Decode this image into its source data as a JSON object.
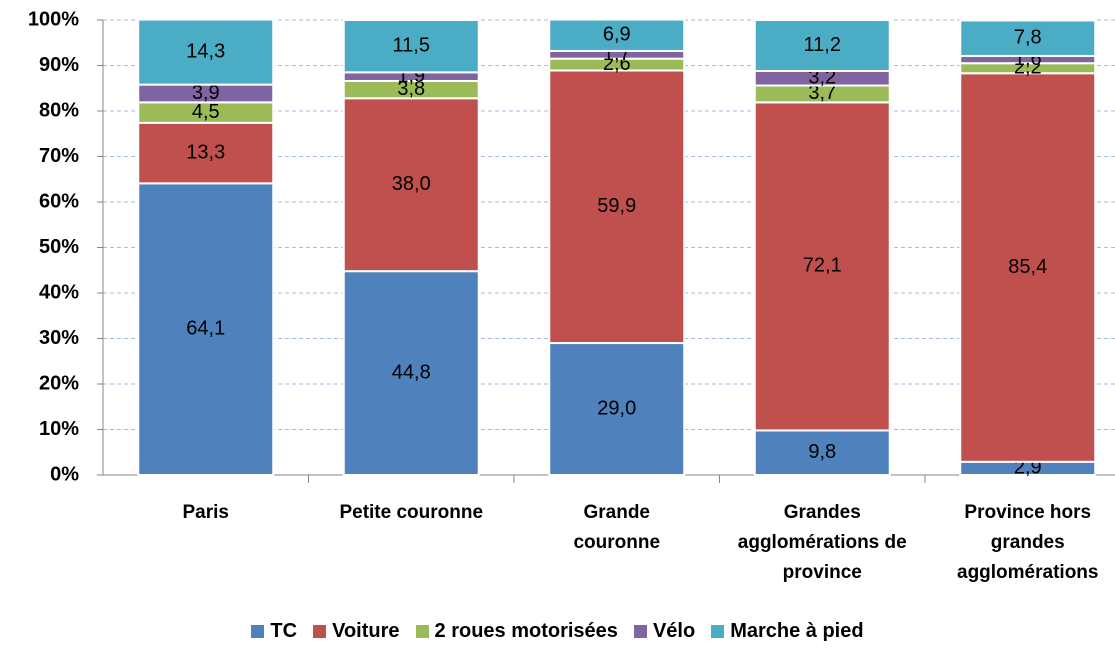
{
  "chart_data": {
    "type": "stacked_bar",
    "categories": [
      "Paris",
      "Petite couronne",
      "Grande couronne",
      "Grandes agglomérations de province",
      "Province hors grandes agglomérations"
    ],
    "series": [
      {
        "name": "TC",
        "color": "#4f81bd",
        "values": [
          64.1,
          44.8,
          29.0,
          9.8,
          2.9
        ],
        "value_labels": [
          "64,1",
          "44,8",
          "29,0",
          "9,8",
          "2,9"
        ]
      },
      {
        "name": "Voiture",
        "color": "#c0504d",
        "values": [
          13.3,
          38.0,
          59.9,
          72.1,
          85.4
        ],
        "value_labels": [
          "13,3",
          "38,0",
          "59,9",
          "72,1",
          "85,4"
        ]
      },
      {
        "name": "2 roues motorisées",
        "color": "#9bbb59",
        "values": [
          4.5,
          3.8,
          2.6,
          3.7,
          2.2
        ],
        "value_labels": [
          "4,5",
          "3,8",
          "2,6",
          "3,7",
          "2,2"
        ]
      },
      {
        "name": "Vélo",
        "color": "#8064a2",
        "values": [
          3.9,
          1.9,
          1.7,
          3.2,
          1.6
        ],
        "value_labels": [
          "3,9",
          "1,9",
          "1,7",
          "3,2",
          "1,6"
        ]
      },
      {
        "name": "Marche à pied",
        "color": "#4bacc6",
        "values": [
          14.3,
          11.5,
          6.9,
          11.2,
          7.8
        ],
        "value_labels": [
          "14,3",
          "11,5",
          "6,9",
          "11,2",
          "7,8"
        ]
      }
    ],
    "ylim": [
      0,
      100
    ],
    "yticks": [
      {
        "value": 0,
        "label": "0%"
      },
      {
        "value": 10,
        "label": "10%"
      },
      {
        "value": 20,
        "label": "20%"
      },
      {
        "value": 30,
        "label": "30%"
      },
      {
        "value": 40,
        "label": "40%"
      },
      {
        "value": 50,
        "label": "50%"
      },
      {
        "value": 60,
        "label": "60%"
      },
      {
        "value": 70,
        "label": "70%"
      },
      {
        "value": 80,
        "label": "80%"
      },
      {
        "value": 90,
        "label": "90%"
      },
      {
        "value": 100,
        "label": "100%"
      }
    ],
    "grid": true,
    "legend": "bottom"
  }
}
